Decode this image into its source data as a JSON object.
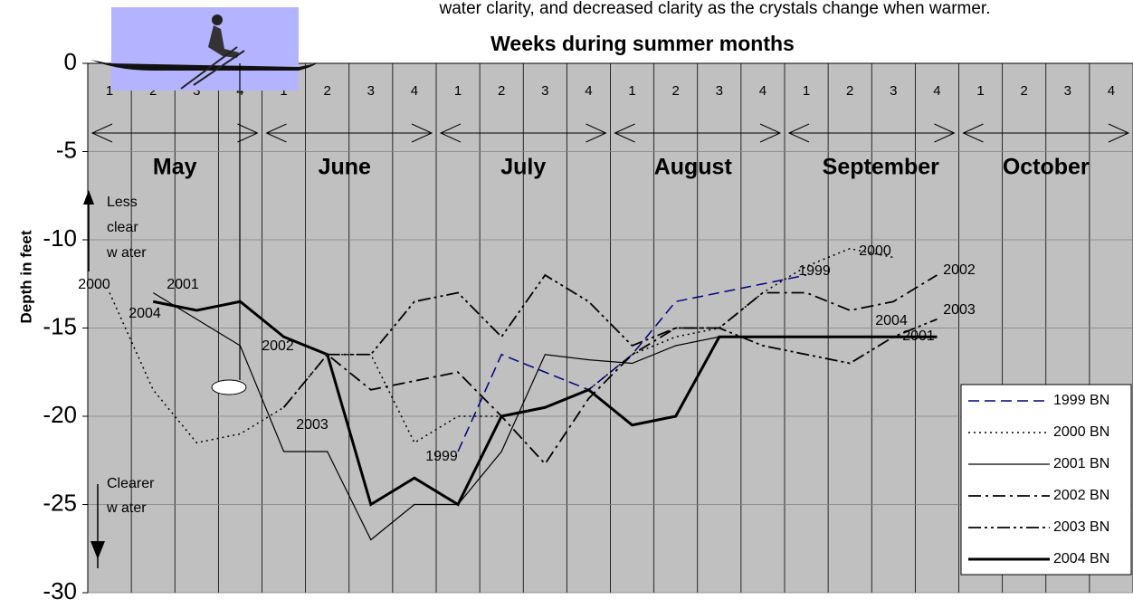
{
  "chart_data": {
    "type": "line",
    "caption": "water clarity, and decreased clarity as the crystals change when warmer.",
    "title": "Weeks during summer months",
    "y_label": "Depth in feet",
    "week_labels": [
      "1",
      "2",
      "3",
      "4",
      "1",
      "2",
      "3",
      "4",
      "1",
      "2",
      "3",
      "4",
      "1",
      "2",
      "3",
      "4",
      "1",
      "2",
      "3",
      "4",
      "1",
      "2",
      "3",
      "4"
    ],
    "months": [
      "May",
      "June",
      "July",
      "August",
      "September",
      "October"
    ],
    "less_clear_label": [
      "Less",
      "clear",
      "w ater"
    ],
    "clearer_label": [
      "Clearer",
      "w ater"
    ],
    "xlim": [
      0.5,
      24.5
    ],
    "ylim": [
      -30,
      0
    ],
    "yticks": [
      0,
      -5,
      -10,
      -15,
      -20,
      -25,
      -30
    ],
    "grid": true,
    "legend": "lower right",
    "series": [
      {
        "name": "1999 BN",
        "color": "#000080",
        "style": "dashed",
        "width": 1.5,
        "x": [
          9,
          10,
          11,
          12,
          13,
          14,
          15,
          16,
          17
        ],
        "values": [
          -22,
          -16.5,
          -17.5,
          -18.5,
          -16.5,
          -13.5,
          -13,
          -12.5,
          -12
        ]
      },
      {
        "name": "2000 BN",
        "color": "#000000",
        "style": "dotted",
        "width": 1.5,
        "x": [
          1,
          2,
          3,
          4,
          5,
          6,
          7,
          8,
          9,
          10,
          11,
          12,
          13,
          14,
          15,
          16,
          17,
          18,
          19
        ],
        "values": [
          -13,
          -18.5,
          -21.5,
          -21,
          -19.5,
          -16.5,
          -16.5,
          -21.5,
          -20,
          -20,
          -19.5,
          -18.5,
          -16.5,
          -15.5,
          -15,
          -13,
          -11.5,
          -10.5,
          -11
        ]
      },
      {
        "name": "2001 BN",
        "color": "#000000",
        "style": "solid",
        "width": 1.2,
        "x": [
          2,
          3,
          4,
          5,
          6,
          7,
          8,
          9,
          10,
          11,
          12,
          13,
          14,
          15,
          16,
          17,
          18,
          19,
          20
        ],
        "values": [
          -13,
          -14.5,
          -16,
          -22,
          -22,
          -27,
          -25,
          -25,
          -22,
          -16.5,
          -16.8,
          -17,
          -16,
          -15.5,
          -15.5,
          -15.5,
          -15.5,
          -15.5,
          -15.5
        ]
      },
      {
        "name": "2002 BN",
        "color": "#000000",
        "style": "dashdot",
        "width": 1.8,
        "x": [
          5,
          6,
          7,
          8,
          9,
          10,
          11,
          12,
          13,
          14,
          15,
          16,
          17,
          18,
          19,
          20
        ],
        "values": [
          -19.5,
          -16.5,
          -18.5,
          -18,
          -17.5,
          -20,
          -22.7,
          -19,
          -16.5,
          -15,
          -15,
          -13,
          -13,
          -14,
          -13.5,
          -12
        ]
      },
      {
        "name": "2003 BN",
        "color": "#000000",
        "style": "dashdotdot",
        "width": 1.8,
        "x": [
          6,
          7,
          8,
          9,
          10,
          11,
          12,
          13,
          14,
          15,
          16,
          17,
          18,
          19,
          20
        ],
        "values": [
          -16.5,
          -16.5,
          -13.5,
          -13,
          -15.5,
          -12,
          -13.5,
          -16,
          -15,
          -15,
          -16,
          -16.5,
          -17,
          -15.5,
          -14.5
        ]
      },
      {
        "name": "2004 BN",
        "color": "#000000",
        "style": "solid",
        "width": 3,
        "x": [
          2,
          3,
          4,
          5,
          6,
          7,
          8,
          9,
          10,
          11,
          12,
          13,
          14,
          15,
          16,
          17,
          18,
          19,
          20
        ],
        "values": [
          -13.5,
          -14,
          -13.5,
          -15.5,
          -16.5,
          -25,
          -23.5,
          -25,
          -20,
          -19.5,
          -18.5,
          -20.5,
          -20,
          -15.5,
          -15.5,
          -15.5,
          -15.5,
          -15.5,
          -15.5
        ]
      }
    ],
    "annotations": [
      "2000",
      "2001",
      "2004",
      "2002",
      "2003",
      "1999",
      "1999",
      "2000",
      "2002",
      "2004",
      "2003",
      "2001"
    ]
  }
}
